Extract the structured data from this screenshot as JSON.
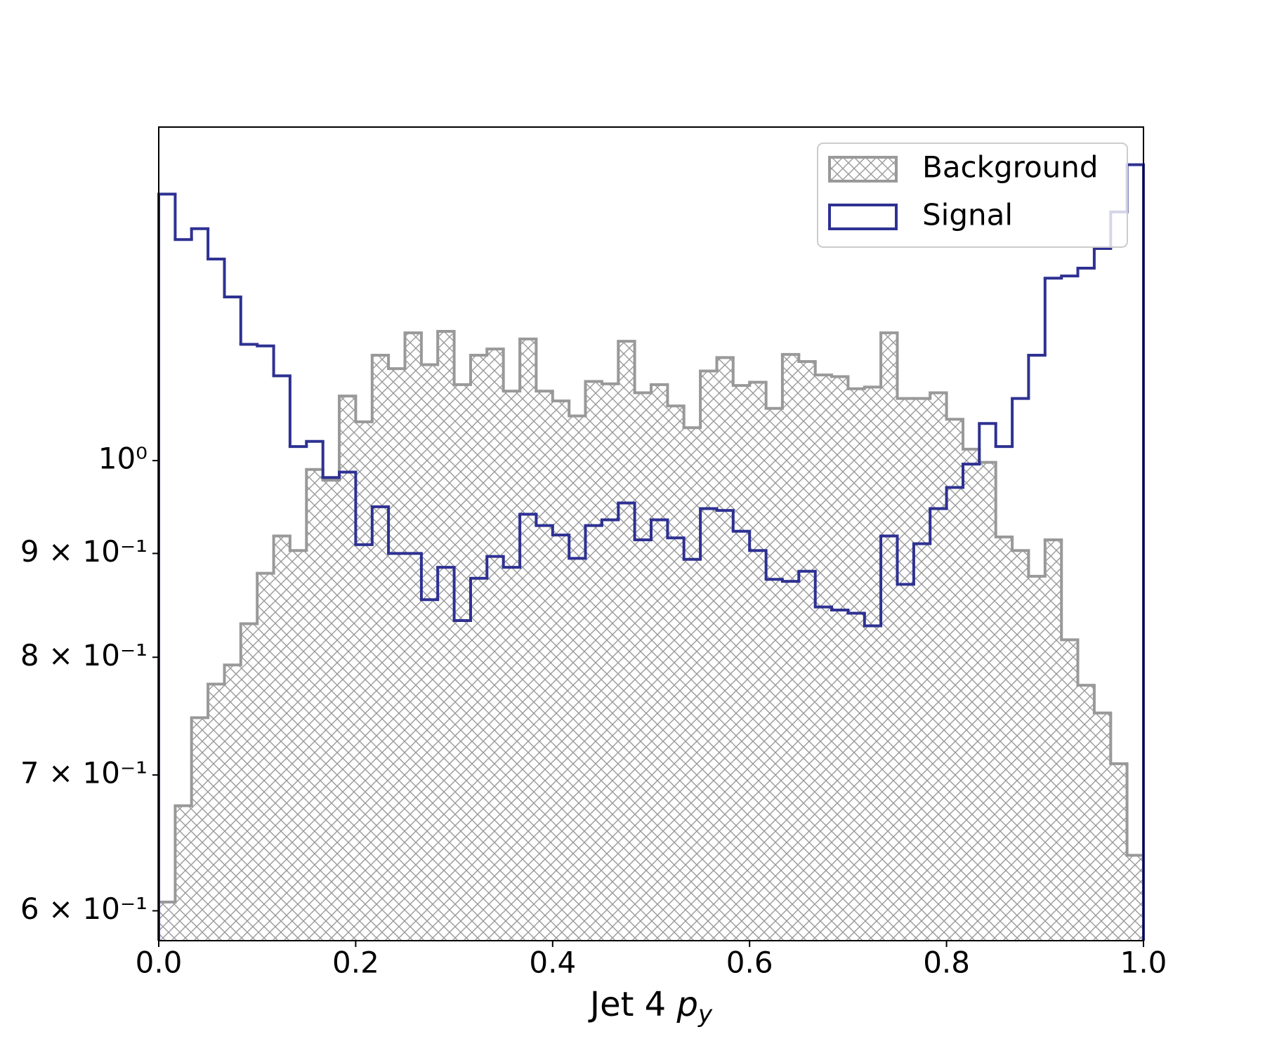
{
  "chart_data": {
    "type": "histogram",
    "xlabel": [
      "Jet 4",
      "p",
      "y"
    ],
    "bins": [
      0,
      0.0167,
      0.0333,
      0.05,
      0.0667,
      0.0833,
      0.1,
      0.1167,
      0.1333,
      0.15,
      0.1667,
      0.1833,
      0.2,
      0.2167,
      0.2333,
      0.25,
      0.2667,
      0.2833,
      0.3,
      0.3167,
      0.3333,
      0.35,
      0.3667,
      0.3833,
      0.4,
      0.4167,
      0.4333,
      0.45,
      0.4667,
      0.4833,
      0.5,
      0.5167,
      0.5333,
      0.55,
      0.5667,
      0.5833,
      0.6,
      0.6167,
      0.6333,
      0.65,
      0.6667,
      0.6833,
      0.7,
      0.7167,
      0.7333,
      0.75,
      0.7667,
      0.7833,
      0.8,
      0.8167,
      0.8333,
      0.85,
      0.8667,
      0.8833,
      0.9,
      0.9167,
      0.9333,
      0.95,
      0.9667,
      0.9833,
      1
    ],
    "series": [
      {
        "name": "Background",
        "color": "#999999",
        "hatch": true,
        "values": [
          0.606,
          0.676,
          0.747,
          0.776,
          0.793,
          0.831,
          0.88,
          0.918,
          0.903,
          0.99,
          0.978,
          1.076,
          1.045,
          1.127,
          1.11,
          1.156,
          1.115,
          1.158,
          1.09,
          1.127,
          1.135,
          1.082,
          1.148,
          1.082,
          1.07,
          1.052,
          1.094,
          1.091,
          1.145,
          1.08,
          1.09,
          1.064,
          1.038,
          1.107,
          1.124,
          1.089,
          1.093,
          1.061,
          1.128,
          1.119,
          1.102,
          1.1,
          1.085,
          1.087,
          1.156,
          1.073,
          1.073,
          1.08,
          1.048,
          1.013,
          0.998,
          0.917,
          0.903,
          0.877,
          0.914,
          0.816,
          0.775,
          0.751,
          0.709,
          0.639
        ]
      },
      {
        "name": "Signal",
        "color": "#2e3192",
        "hatch": false,
        "values": [
          1.353,
          1.285,
          1.301,
          1.257,
          1.204,
          1.141,
          1.139,
          1.101,
          1.016,
          1.022,
          0.981,
          0.987,
          0.909,
          0.949,
          0.9,
          0.9,
          0.854,
          0.886,
          0.834,
          0.875,
          0.897,
          0.886,
          0.941,
          0.929,
          0.919,
          0.895,
          0.929,
          0.935,
          0.953,
          0.914,
          0.935,
          0.916,
          0.894,
          0.947,
          0.945,
          0.923,
          0.903,
          0.874,
          0.872,
          0.882,
          0.847,
          0.844,
          0.841,
          0.829,
          0.918,
          0.869,
          0.91,
          0.947,
          0.97,
          0.996,
          1.043,
          1.016,
          1.073,
          1.127,
          1.23,
          1.233,
          1.244,
          1.272,
          1.326,
          1.399
        ]
      }
    ],
    "xlim": [
      0,
      1
    ],
    "xticks": [
      {
        "value": 0,
        "label": "0.0"
      },
      0.2,
      0.4,
      0.6,
      0.8,
      {
        "value": 1,
        "label": "1.0"
      }
    ],
    "ylim": [
      0.58,
      1.46
    ],
    "log": true,
    "yticks": [
      {
        "value": 0.6,
        "label": "6 × 10⁻¹"
      },
      {
        "value": 0.7,
        "label": "7 × 10⁻¹"
      },
      {
        "value": 0.8,
        "label": "8 × 10⁻¹"
      },
      {
        "value": 0.9,
        "label": "9 × 10⁻¹"
      },
      {
        "value": 1,
        "label": "10⁰"
      }
    ],
    "legend": "upper right"
  }
}
